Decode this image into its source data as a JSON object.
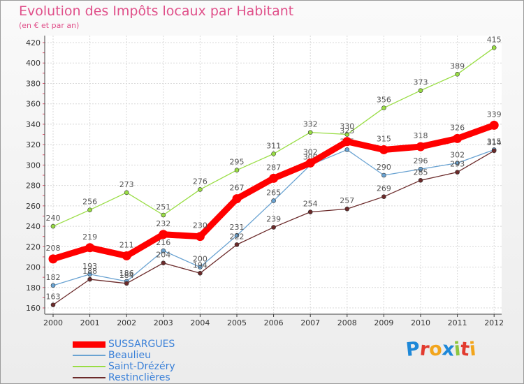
{
  "chart_data": {
    "type": "line",
    "title": "Evolution des Impôts locaux par Habitant",
    "subtitle": "(en € et par an)",
    "x": [
      "2000",
      "2001",
      "2002",
      "2003",
      "2004",
      "2005",
      "2006",
      "2007",
      "2008",
      "2009",
      "2010",
      "2011",
      "2012"
    ],
    "yticks": [
      160,
      180,
      200,
      220,
      240,
      260,
      280,
      300,
      320,
      340,
      360,
      380,
      400,
      420
    ],
    "ylim": [
      160,
      420
    ],
    "grid": true,
    "legend_position": "bottom-left",
    "series": [
      {
        "name": "SUSSARGUES",
        "color": "#ff0000",
        "emphasis": true,
        "values": [
          208,
          219,
          211,
          232,
          230,
          267,
          287,
          302,
          323,
          315,
          318,
          326,
          339
        ],
        "labels": [
          "208",
          "219",
          "211",
          "232",
          "230",
          "267",
          "287",
          "302",
          "323",
          "315",
          "318",
          "326",
          "339"
        ]
      },
      {
        "name": "Beaulieu",
        "color": "#6aa3d2",
        "emphasis": false,
        "values": [
          182,
          193,
          186,
          216,
          200,
          231,
          265,
          300,
          315,
          290,
          296,
          302,
          315
        ],
        "labels": [
          "182",
          "193",
          "186",
          "216",
          "200",
          "231",
          "265",
          "300",
          "315",
          "290",
          "296",
          "302",
          "315"
        ]
      },
      {
        "name": "Saint-Drézéry",
        "color": "#99dd44",
        "emphasis": false,
        "values": [
          240,
          256,
          273,
          251,
          276,
          295,
          311,
          332,
          330,
          356,
          373,
          389,
          415
        ],
        "labels": [
          "240",
          "256",
          "273",
          "251",
          "276",
          "295",
          "311",
          "332",
          "330",
          "356",
          "373",
          "389",
          "415"
        ]
      },
      {
        "name": "Restinclières",
        "color": "#6b2a2a",
        "emphasis": false,
        "values": [
          163,
          188,
          184,
          204,
          194,
          222,
          239,
          254,
          257,
          269,
          285,
          293,
          314
        ],
        "labels": [
          "163",
          "188",
          "184",
          "204",
          "194",
          "222",
          "239",
          "254",
          "257",
          "269",
          "285",
          "293",
          "314"
        ]
      }
    ]
  },
  "brand": {
    "text": "Proxiti",
    "letters": [
      "P",
      "r",
      "o",
      "x",
      "i",
      "t",
      "i"
    ],
    "colors": [
      "#1e88d8",
      "#e23a2e",
      "#f2a51c",
      "#1e88d8",
      "#8cc63f",
      "#e23a2e",
      "#f2a51c"
    ]
  }
}
